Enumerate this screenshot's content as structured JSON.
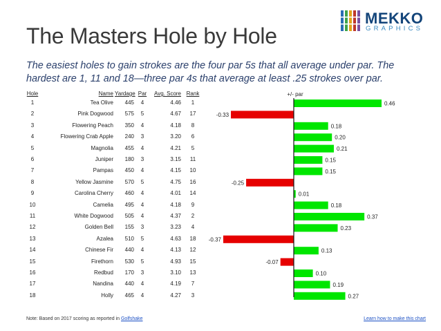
{
  "header": {
    "title": "The Masters Hole by Hole",
    "subtitle": "The easiest holes to gain strokes are the four par 5s that all average under par.  The hardest are 1, 11 and 18—three par 4s that average at least .25 strokes over par.",
    "logo_word": "MEKKO",
    "logo_sub": "GRAPHICS"
  },
  "table": {
    "columns": [
      "Hole",
      "Name",
      "Yardage",
      "Par",
      "Avg. Score",
      "Rank"
    ],
    "rows": [
      [
        "1",
        "Tea Olive",
        "445",
        "4",
        "4.46",
        "1"
      ],
      [
        "2",
        "Pink Dogwood",
        "575",
        "5",
        "4.67",
        "17"
      ],
      [
        "3",
        "Flowering Peach",
        "350",
        "4",
        "4.18",
        "8"
      ],
      [
        "4",
        "Flowering Crab Apple",
        "240",
        "3",
        "3.20",
        "6"
      ],
      [
        "5",
        "Magnolia",
        "455",
        "4",
        "4.21",
        "5"
      ],
      [
        "6",
        "Juniper",
        "180",
        "3",
        "3.15",
        "11"
      ],
      [
        "7",
        "Pampas",
        "450",
        "4",
        "4.15",
        "10"
      ],
      [
        "8",
        "Yellow Jasmine",
        "570",
        "5",
        "4.75",
        "16"
      ],
      [
        "9",
        "Carolina Cherry",
        "460",
        "4",
        "4.01",
        "14"
      ],
      [
        "10",
        "Camelia",
        "495",
        "4",
        "4.18",
        "9"
      ],
      [
        "11",
        "White Dogwood",
        "505",
        "4",
        "4.37",
        "2"
      ],
      [
        "12",
        "Golden Bell",
        "155",
        "3",
        "3.23",
        "4"
      ],
      [
        "13",
        "Azalea",
        "510",
        "5",
        "4.63",
        "18"
      ],
      [
        "14",
        "Chinese Fir",
        "440",
        "4",
        "4.13",
        "12"
      ],
      [
        "15",
        "Firethorn",
        "530",
        "5",
        "4.93",
        "15"
      ],
      [
        "16",
        "Redbud",
        "170",
        "3",
        "3.10",
        "13"
      ],
      [
        "17",
        "Nandina",
        "440",
        "4",
        "4.19",
        "7"
      ],
      [
        "18",
        "Holly",
        "465",
        "4",
        "4.27",
        "3"
      ]
    ]
  },
  "chart_data": {
    "type": "bar",
    "orientation": "horizontal",
    "title": "+/- par",
    "categories": [
      "1",
      "2",
      "3",
      "4",
      "5",
      "6",
      "7",
      "8",
      "9",
      "10",
      "11",
      "12",
      "13",
      "14",
      "15",
      "16",
      "17",
      "18"
    ],
    "values": [
      0.46,
      -0.33,
      0.18,
      0.2,
      0.21,
      0.15,
      0.15,
      -0.25,
      0.01,
      0.18,
      0.37,
      0.23,
      -0.37,
      0.13,
      -0.07,
      0.1,
      0.19,
      0.27
    ],
    "labels": [
      "0.46",
      "-0.33",
      "0.18",
      "0.20",
      "0.21",
      "0.15",
      "0.15",
      "-0.25",
      "0.01",
      "0.18",
      "0.37",
      "0.23",
      "-0.37",
      "0.13",
      "-0.07",
      "0.10",
      "0.19",
      "0.27"
    ],
    "xlim": [
      -0.37,
      0.46
    ],
    "positive_color": "#00e600",
    "negative_color": "#e60000"
  },
  "footer": {
    "note_prefix": "Note: Based on 2017 scoring as reported in ",
    "note_link": "Golfshake",
    "learn_link": "Learn how to make this chart"
  }
}
